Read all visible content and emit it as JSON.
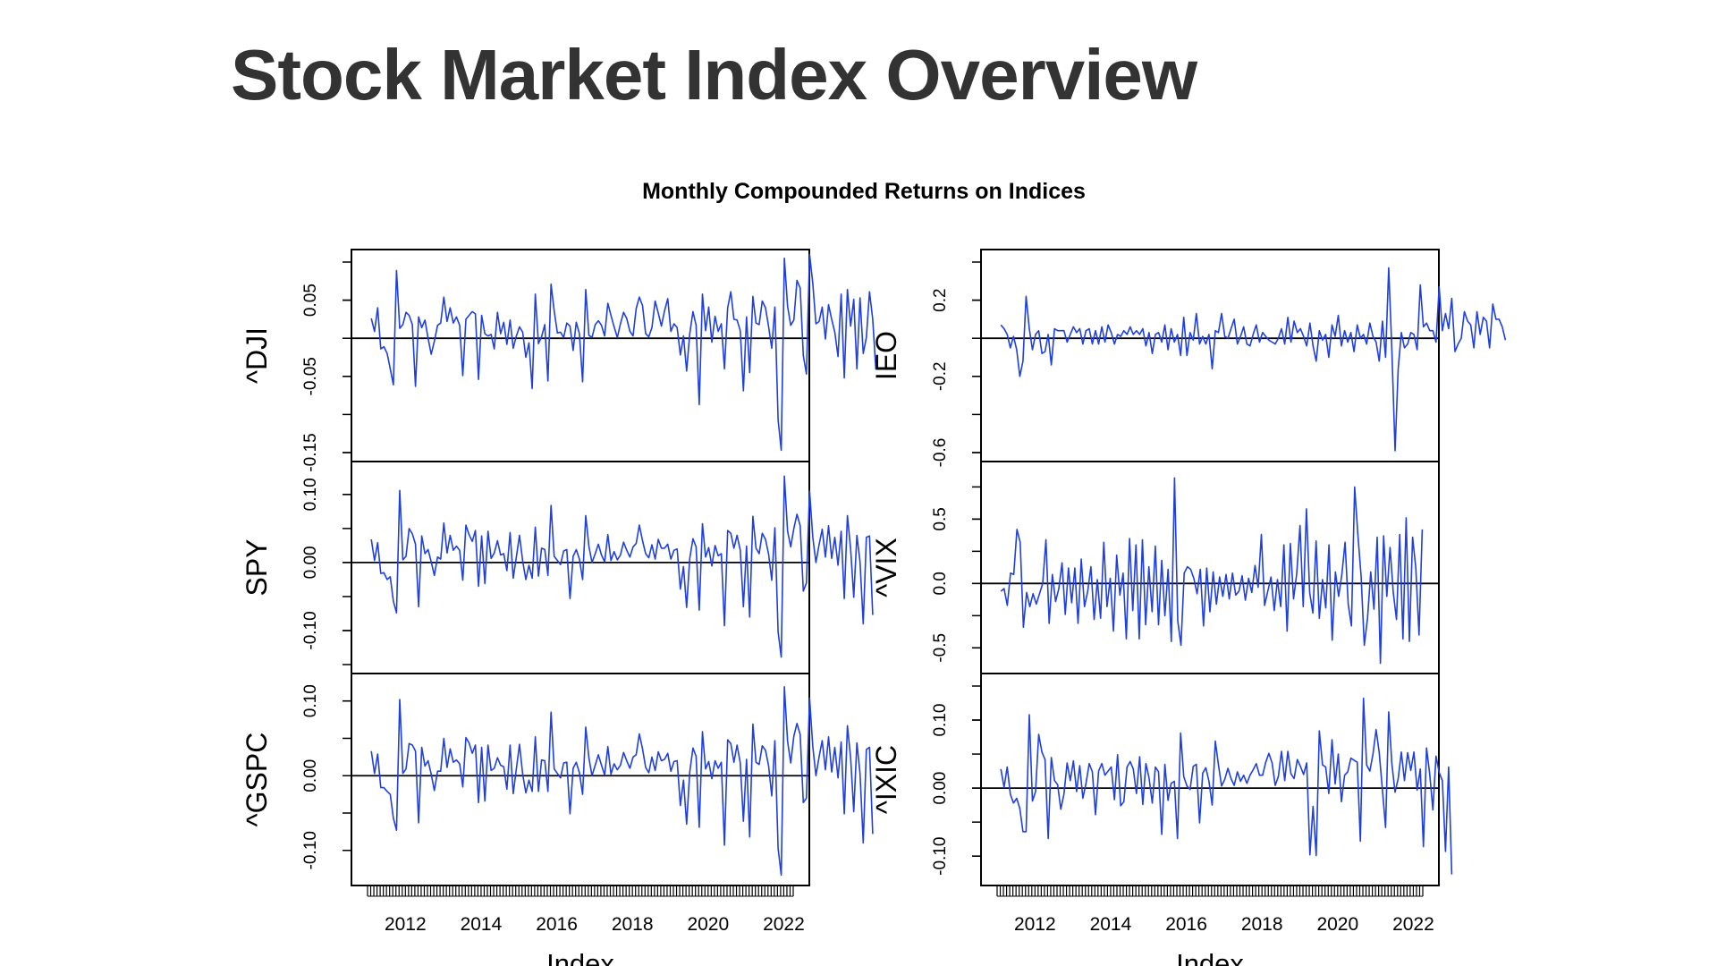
{
  "page": {
    "title": "Stock Market Index Overview"
  },
  "chart_data": {
    "type": "line",
    "title": "Monthly Compounded Returns on Indices",
    "xlabel": "Index",
    "x_ticks": [
      "2012",
      "2014",
      "2016",
      "2018",
      "2020",
      "2022"
    ],
    "x_range": [
      2011.0,
      2022.25
    ],
    "line_color": "#1f3fe0",
    "zero_line": true,
    "grid": false,
    "legend": "none",
    "panels": [
      {
        "name": "^DJI",
        "column": "left",
        "ylim": [
          -0.15,
          0.1
        ],
        "y_ticks": [
          0.05,
          -0.05,
          -0.15
        ],
        "y_tick_labels": [
          "0.05",
          "-0.05",
          "-0.15"
        ],
        "values": [
          0.026,
          0.009,
          0.04,
          -0.014,
          -0.011,
          -0.02,
          -0.04,
          -0.061,
          0.089,
          0.013,
          0.018,
          0.034,
          0.03,
          0.018,
          -0.063,
          0.028,
          0.014,
          0.024,
          0.0,
          -0.021,
          -0.004,
          0.017,
          0.02,
          0.054,
          0.022,
          0.04,
          0.02,
          0.028,
          0.017,
          -0.049,
          0.025,
          0.03,
          0.035,
          0.032,
          -0.054,
          0.03,
          0.006,
          0.003,
          0.005,
          -0.014,
          0.034,
          0.006,
          0.021,
          -0.008,
          0.024,
          -0.013,
          0.003,
          0.015,
          0.008,
          -0.025,
          -0.006,
          -0.066,
          0.058,
          -0.007,
          0.002,
          0.018,
          -0.056,
          0.071,
          0.036,
          0.007,
          0.008,
          0.001,
          0.02,
          0.016,
          -0.016,
          0.021,
          0.006,
          -0.057,
          0.064,
          0.004,
          0.001,
          0.018,
          0.023,
          0.017,
          0.003,
          0.046,
          0.03,
          0.015,
          0.001,
          0.019,
          0.034,
          0.026,
          0.009,
          0.003,
          0.039,
          0.054,
          0.043,
          0.006,
          0.002,
          0.014,
          0.049,
          0.033,
          0.016,
          0.036,
          0.052,
          0.009,
          0.019,
          0.014,
          -0.022,
          0.003,
          -0.043,
          0.006,
          0.035,
          0.017,
          -0.087,
          0.058,
          0.01,
          0.041,
          -0.005,
          0.029,
          0.009,
          0.019,
          -0.04,
          0.04,
          0.061,
          0.025,
          0.024,
          0.01,
          -0.069,
          0.028,
          -0.045,
          0.055,
          0.02,
          0.018,
          0.049,
          0.04,
          0.015,
          -0.013,
          0.041,
          -0.107,
          -0.147,
          0.105,
          0.042,
          0.017,
          0.024,
          0.076,
          0.066,
          -0.023,
          -0.047,
          0.11,
          0.072,
          0.019,
          0.022,
          0.041,
          -0.001,
          0.044,
          0.025,
          0.008,
          -0.024,
          0.058,
          -0.052,
          0.064,
          0.016,
          0.051,
          -0.04,
          0.053,
          -0.02,
          0.001,
          0.061,
          0.025,
          -0.041
        ],
        "start": 2011.1
      },
      {
        "name": "SPY",
        "column": "left",
        "ylim": [
          -0.15,
          0.13
        ],
        "y_ticks": [
          0.1,
          0.0,
          -0.1
        ],
        "y_tick_labels": [
          "0.10",
          "0.00",
          "-0.10"
        ],
        "values": [
          0.034,
          0.003,
          0.029,
          -0.016,
          -0.015,
          -0.025,
          -0.021,
          -0.057,
          -0.074,
          0.106,
          0.004,
          0.009,
          0.05,
          0.042,
          0.027,
          -0.065,
          0.039,
          0.013,
          0.019,
          0.001,
          -0.019,
          0.008,
          0.005,
          0.058,
          0.014,
          0.04,
          0.018,
          0.024,
          0.018,
          -0.026,
          0.055,
          0.041,
          0.031,
          0.047,
          -0.035,
          0.039,
          -0.031,
          0.046,
          0.006,
          0.014,
          0.032,
          0.011,
          0.013,
          -0.012,
          0.044,
          -0.023,
          0.008,
          0.04,
          0.002,
          -0.025,
          -0.004,
          -0.023,
          0.052,
          -0.02,
          0.021,
          0.019,
          -0.019,
          0.084,
          0.009,
          0.003,
          -0.003,
          0.017,
          0.019,
          -0.053,
          0.009,
          0.019,
          0.005,
          -0.025,
          0.069,
          0.024,
          0.0,
          0.013,
          0.027,
          0.011,
          0.001,
          0.041,
          0.003,
          0.016,
          0.004,
          0.011,
          0.03,
          0.018,
          0.008,
          0.023,
          0.028,
          0.055,
          0.032,
          0.013,
          0.007,
          0.026,
          0.005,
          0.034,
          0.021,
          0.021,
          0.027,
          0.005,
          0.018,
          0.02,
          -0.039,
          -0.006,
          -0.066,
          0.006,
          0.035,
          0.023,
          -0.07,
          0.057,
          0.008,
          0.022,
          -0.005,
          0.025,
          0.01,
          0.013,
          -0.093,
          0.047,
          0.043,
          0.021,
          0.04,
          0.018,
          -0.065,
          0.024,
          -0.08,
          0.068,
          0.021,
          0.013,
          0.043,
          0.034,
          0.012,
          -0.026,
          0.051,
          -0.102,
          -0.139,
          0.127,
          0.046,
          0.023,
          0.05,
          0.071,
          0.054,
          -0.042,
          -0.03,
          0.105,
          0.037,
          0.0,
          0.026,
          0.049,
          0.008,
          0.054,
          0.006,
          0.037,
          -0.004,
          0.046,
          -0.053,
          0.069,
          0.02,
          -0.051,
          0.04,
          0.001,
          -0.09,
          0.037,
          0.039,
          -0.077
        ],
        "start": 2011.1
      },
      {
        "name": "^GSPC",
        "column": "left",
        "ylim": [
          -0.135,
          0.12
        ],
        "y_ticks": [
          0.1,
          0.0,
          -0.1
        ],
        "y_tick_labels": [
          "0.10",
          "0.00",
          "-0.10"
        ],
        "values": [
          0.033,
          0.003,
          0.029,
          -0.016,
          -0.016,
          -0.021,
          -0.025,
          -0.057,
          -0.073,
          0.102,
          0.003,
          0.009,
          0.043,
          0.041,
          0.033,
          -0.063,
          0.038,
          0.013,
          0.02,
          0.002,
          -0.02,
          0.006,
          0.006,
          0.05,
          0.011,
          0.036,
          0.018,
          0.021,
          0.016,
          -0.015,
          0.051,
          0.044,
          0.03,
          0.041,
          -0.036,
          0.038,
          -0.034,
          0.041,
          0.007,
          0.01,
          0.024,
          0.014,
          0.012,
          -0.018,
          0.041,
          -0.024,
          0.009,
          0.042,
          0.002,
          -0.023,
          -0.006,
          -0.021,
          0.052,
          -0.021,
          0.021,
          0.02,
          -0.021,
          0.085,
          0.009,
          0.003,
          -0.003,
          0.017,
          0.018,
          -0.051,
          0.01,
          0.018,
          0.004,
          -0.025,
          0.065,
          0.024,
          0.0,
          0.014,
          0.028,
          0.014,
          0.001,
          0.039,
          0.002,
          0.016,
          0.008,
          0.014,
          0.031,
          0.02,
          0.01,
          0.025,
          0.028,
          0.056,
          0.036,
          0.011,
          0.004,
          0.025,
          0.007,
          0.032,
          0.02,
          0.022,
          0.03,
          0.006,
          0.019,
          0.02,
          -0.04,
          -0.006,
          -0.065,
          0.005,
          0.037,
          0.026,
          -0.069,
          0.059,
          0.009,
          0.019,
          -0.004,
          0.02,
          0.01,
          0.018,
          -0.093,
          0.048,
          0.043,
          0.018,
          0.041,
          0.017,
          -0.061,
          0.022,
          -0.082,
          0.069,
          0.018,
          0.015,
          0.04,
          0.034,
          0.013,
          -0.027,
          0.047,
          -0.097,
          -0.133,
          0.119,
          0.046,
          0.017,
          0.053,
          0.07,
          0.055,
          -0.036,
          -0.03,
          0.104,
          0.039,
          0.0,
          0.025,
          0.047,
          0.008,
          0.052,
          0.005,
          0.038,
          -0.003,
          0.045,
          -0.051,
          0.067,
          0.024,
          -0.048,
          0.044,
          0.003,
          -0.09,
          0.035,
          0.038,
          -0.078
        ],
        "start": 2011.1
      },
      {
        "name": "IEO",
        "column": "right",
        "ylim": [
          -0.6,
          0.4
        ],
        "y_ticks": [
          0.2,
          -0.2,
          -0.6
        ],
        "y_tick_labels": [
          "0.2",
          "-0.2",
          "-0.6"
        ],
        "values": [
          0.07,
          0.05,
          0.02,
          -0.05,
          0.01,
          -0.06,
          -0.2,
          -0.12,
          0.22,
          0.05,
          -0.06,
          0.02,
          0.04,
          -0.08,
          -0.07,
          0.02,
          -0.14,
          0.05,
          0.04,
          0.04,
          0.04,
          -0.02,
          0.02,
          0.06,
          0.03,
          0.05,
          -0.03,
          0.04,
          0.05,
          -0.03,
          0.04,
          -0.03,
          0.06,
          -0.02,
          0.07,
          0.03,
          -0.03,
          0.02,
          0.01,
          0.04,
          0.02,
          0.06,
          0.02,
          0.04,
          0.02,
          0.05,
          -0.04,
          0.03,
          -0.08,
          0.02,
          0.03,
          -0.02,
          0.07,
          -0.06,
          0.05,
          -0.02,
          0.02,
          -0.09,
          0.11,
          -0.09,
          0.03,
          -0.01,
          0.13,
          -0.03,
          0.01,
          -0.03,
          0.02,
          -0.16,
          0.04,
          0.03,
          0.13,
          0.01,
          0.0,
          0.05,
          0.1,
          -0.03,
          0.01,
          0.06,
          -0.03,
          -0.04,
          0.02,
          0.07,
          -0.02,
          0.03,
          0.01,
          -0.01,
          -0.02,
          -0.03,
          0.0,
          0.05,
          -0.03,
          0.11,
          -0.02,
          0.09,
          0.03,
          0.05,
          0.01,
          -0.04,
          0.08,
          -0.04,
          -0.12,
          0.04,
          -0.01,
          0.02,
          -0.1,
          0.07,
          0.01,
          0.12,
          -0.04,
          0.04,
          -0.02,
          0.03,
          -0.07,
          0.07,
          0.0,
          0.02,
          -0.03,
          0.08,
          0.01,
          -0.02,
          -0.12,
          0.09,
          -0.1,
          0.37,
          -0.06,
          -0.59,
          -0.16,
          0.03,
          -0.05,
          -0.03,
          0.03,
          0.02,
          -0.06,
          0.28,
          0.06,
          0.08,
          0.04,
          0.04,
          -0.02,
          0.27,
          0.04,
          0.13,
          0.05,
          0.21,
          -0.07,
          -0.03,
          0.0,
          0.14,
          0.09,
          0.07,
          -0.05,
          0.14,
          0.02,
          0.11,
          0.09,
          -0.05,
          0.18,
          0.1,
          0.1,
          0.06,
          -0.01
        ],
        "start": 2011.1
      },
      {
        "name": "^VIX",
        "column": "right",
        "ylim": [
          -0.63,
          0.85
        ],
        "y_ticks": [
          0.5,
          0.0,
          -0.5
        ],
        "y_tick_labels": [
          "0.5",
          "0.0",
          "-0.5"
        ],
        "values": [
          -0.06,
          -0.04,
          -0.17,
          0.08,
          0.07,
          0.42,
          0.32,
          -0.34,
          -0.07,
          -0.18,
          -0.08,
          -0.16,
          -0.08,
          0.0,
          0.34,
          -0.31,
          0.07,
          -0.14,
          -0.04,
          0.16,
          -0.24,
          0.12,
          -0.15,
          0.12,
          -0.31,
          0.19,
          -0.18,
          -0.06,
          0.13,
          -0.28,
          0.03,
          -0.27,
          0.32,
          -0.18,
          0.04,
          -0.37,
          0.22,
          -0.09,
          0.08,
          -0.43,
          0.35,
          -0.21,
          0.3,
          -0.43,
          0.34,
          -0.32,
          0.13,
          -0.22,
          0.29,
          -0.32,
          0.18,
          -0.25,
          0.11,
          -0.45,
          0.82,
          -0.29,
          -0.48,
          0.08,
          0.13,
          0.11,
          0.04,
          -0.08,
          0.11,
          -0.33,
          0.12,
          -0.22,
          0.09,
          -0.16,
          0.05,
          -0.1,
          0.07,
          -0.12,
          0.08,
          -0.09,
          -0.06,
          0.06,
          -0.13,
          0.04,
          -0.07,
          0.14,
          -0.03,
          0.38,
          -0.17,
          -0.06,
          0.05,
          -0.21,
          0.03,
          -0.18,
          0.3,
          -0.37,
          0.31,
          -0.12,
          0.08,
          0.45,
          -0.18,
          0.58,
          -0.07,
          -0.23,
          0.33,
          -0.27,
          0.03,
          -0.19,
          0.3,
          -0.44,
          0.09,
          -0.1,
          0.07,
          0.32,
          -0.16,
          -0.33,
          0.75,
          0.38,
          0.06,
          -0.48,
          -0.27,
          0.09,
          -0.2,
          0.36,
          -0.62,
          0.37,
          -0.1,
          0.28,
          -0.07,
          -0.28,
          0.38,
          -0.43,
          0.51,
          -0.45,
          0.36,
          0.12,
          -0.4,
          0.42
        ],
        "start": 2011.1,
        "step": 0.085
      },
      {
        "name": "^IXIC",
        "column": "right",
        "ylim": [
          -0.13,
          0.15
        ],
        "y_ticks": [
          0.1,
          0.0,
          -0.1
        ],
        "y_tick_labels": [
          "0.10",
          "0.00",
          "-0.10"
        ],
        "values": [
          0.028,
          0.001,
          0.031,
          -0.009,
          -0.022,
          -0.015,
          -0.03,
          -0.064,
          -0.064,
          0.108,
          -0.019,
          -0.005,
          0.079,
          0.053,
          0.042,
          -0.074,
          0.045,
          0.011,
          0.005,
          -0.031,
          -0.009,
          0.037,
          0.011,
          0.04,
          -0.005,
          0.033,
          -0.015,
          0.007,
          0.036,
          0.024,
          -0.039,
          0.025,
          0.036,
          0.019,
          0.025,
          0.031,
          -0.017,
          0.049,
          -0.026,
          -0.02,
          0.031,
          0.039,
          0.028,
          -0.008,
          0.046,
          -0.024,
          0.036,
          0.015,
          -0.022,
          0.031,
          0.024,
          -0.068,
          0.035,
          -0.018,
          0.007,
          0.01,
          -0.074,
          0.081,
          0.017,
          0.003,
          -0.002,
          0.032,
          0.035,
          -0.051,
          0.022,
          0.03,
          0.01,
          -0.025,
          0.069,
          0.034,
          0.003,
          0.013,
          0.029,
          0.014,
          0.004,
          0.024,
          0.01,
          0.019,
          0.007,
          0.019,
          0.027,
          0.036,
          0.019,
          0.019,
          0.038,
          0.051,
          0.037,
          0.004,
          0.017,
          0.054,
          0.011,
          0.054,
          0.021,
          0.014,
          0.042,
          0.032,
          0.02,
          0.037,
          -0.098,
          -0.027,
          -0.099,
          0.084,
          0.034,
          0.031,
          -0.008,
          0.071,
          0.006,
          0.05,
          -0.02,
          0.019,
          0.024,
          0.044,
          0.041,
          0.038,
          -0.078,
          0.132,
          0.034,
          0.025,
          0.05,
          0.086,
          0.052,
          -0.003,
          -0.058,
          0.112,
          0.036,
          -0.006,
          0.014,
          0.053,
          0.011,
          0.052,
          0.026,
          0.053,
          -0.003,
          0.028,
          -0.086,
          0.059,
          0.02,
          -0.032,
          0.047,
          0.023,
          0.011,
          -0.093,
          0.031,
          -0.127
        ],
        "start": 2011.1
      }
    ]
  }
}
